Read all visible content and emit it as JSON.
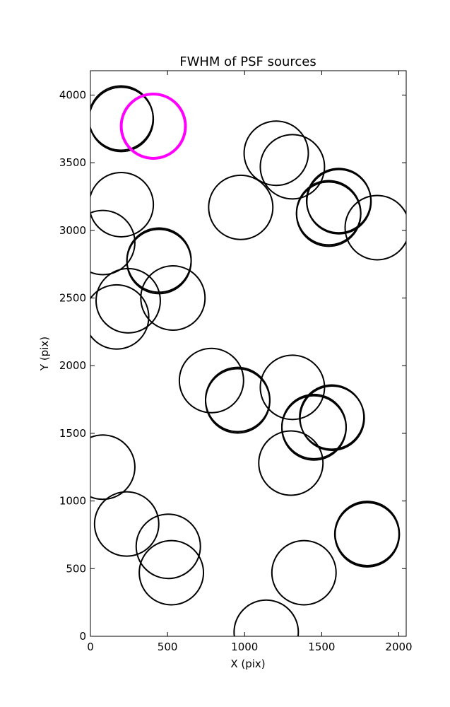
{
  "chart_data": {
    "type": "scatter",
    "marker": "circle",
    "title": "FWHM of PSF sources",
    "xlabel": "X (pix)",
    "ylabel": "Y (pix)",
    "xlim": [
      0,
      2048
    ],
    "ylim": [
      0,
      4180
    ],
    "xticks": [
      0,
      500,
      1000,
      1500,
      2000
    ],
    "yticks": [
      0,
      500,
      1000,
      1500,
      2000,
      2500,
      3000,
      3500,
      4000
    ],
    "grid": false,
    "circle_radius": 222,
    "series": [
      {
        "color": "#000000",
        "points": [
          {
            "x": 200,
            "y": 3820
          },
          {
            "x": 198,
            "y": 3830
          },
          {
            "x": 200,
            "y": 3190
          },
          {
            "x": 80,
            "y": 2910
          },
          {
            "x": 445,
            "y": 2780
          },
          {
            "x": 445,
            "y": 2770
          },
          {
            "x": 245,
            "y": 2480
          },
          {
            "x": 170,
            "y": 2360
          },
          {
            "x": 535,
            "y": 2500
          },
          {
            "x": 975,
            "y": 3170
          },
          {
            "x": 1205,
            "y": 3570
          },
          {
            "x": 1310,
            "y": 3470
          },
          {
            "x": 1610,
            "y": 3220
          },
          {
            "x": 1612,
            "y": 3212
          },
          {
            "x": 1545,
            "y": 3130
          },
          {
            "x": 1545,
            "y": 3120
          },
          {
            "x": 1860,
            "y": 3020
          },
          {
            "x": 785,
            "y": 1890
          },
          {
            "x": 955,
            "y": 1750
          },
          {
            "x": 955,
            "y": 1740
          },
          {
            "x": 1310,
            "y": 1840
          },
          {
            "x": 1565,
            "y": 1620
          },
          {
            "x": 1568,
            "y": 1612
          },
          {
            "x": 1450,
            "y": 1550
          },
          {
            "x": 1450,
            "y": 1540
          },
          {
            "x": 1300,
            "y": 1280
          },
          {
            "x": 80,
            "y": 1250
          },
          {
            "x": 235,
            "y": 830
          },
          {
            "x": 505,
            "y": 665
          },
          {
            "x": 525,
            "y": 470
          },
          {
            "x": 1385,
            "y": 470
          },
          {
            "x": 1795,
            "y": 760
          },
          {
            "x": 1795,
            "y": 750
          },
          {
            "x": 1793,
            "y": 755
          },
          {
            "x": 1140,
            "y": 30
          }
        ]
      },
      {
        "color": "#ff00ff",
        "points": [
          {
            "x": 408,
            "y": 3770
          }
        ]
      }
    ]
  }
}
